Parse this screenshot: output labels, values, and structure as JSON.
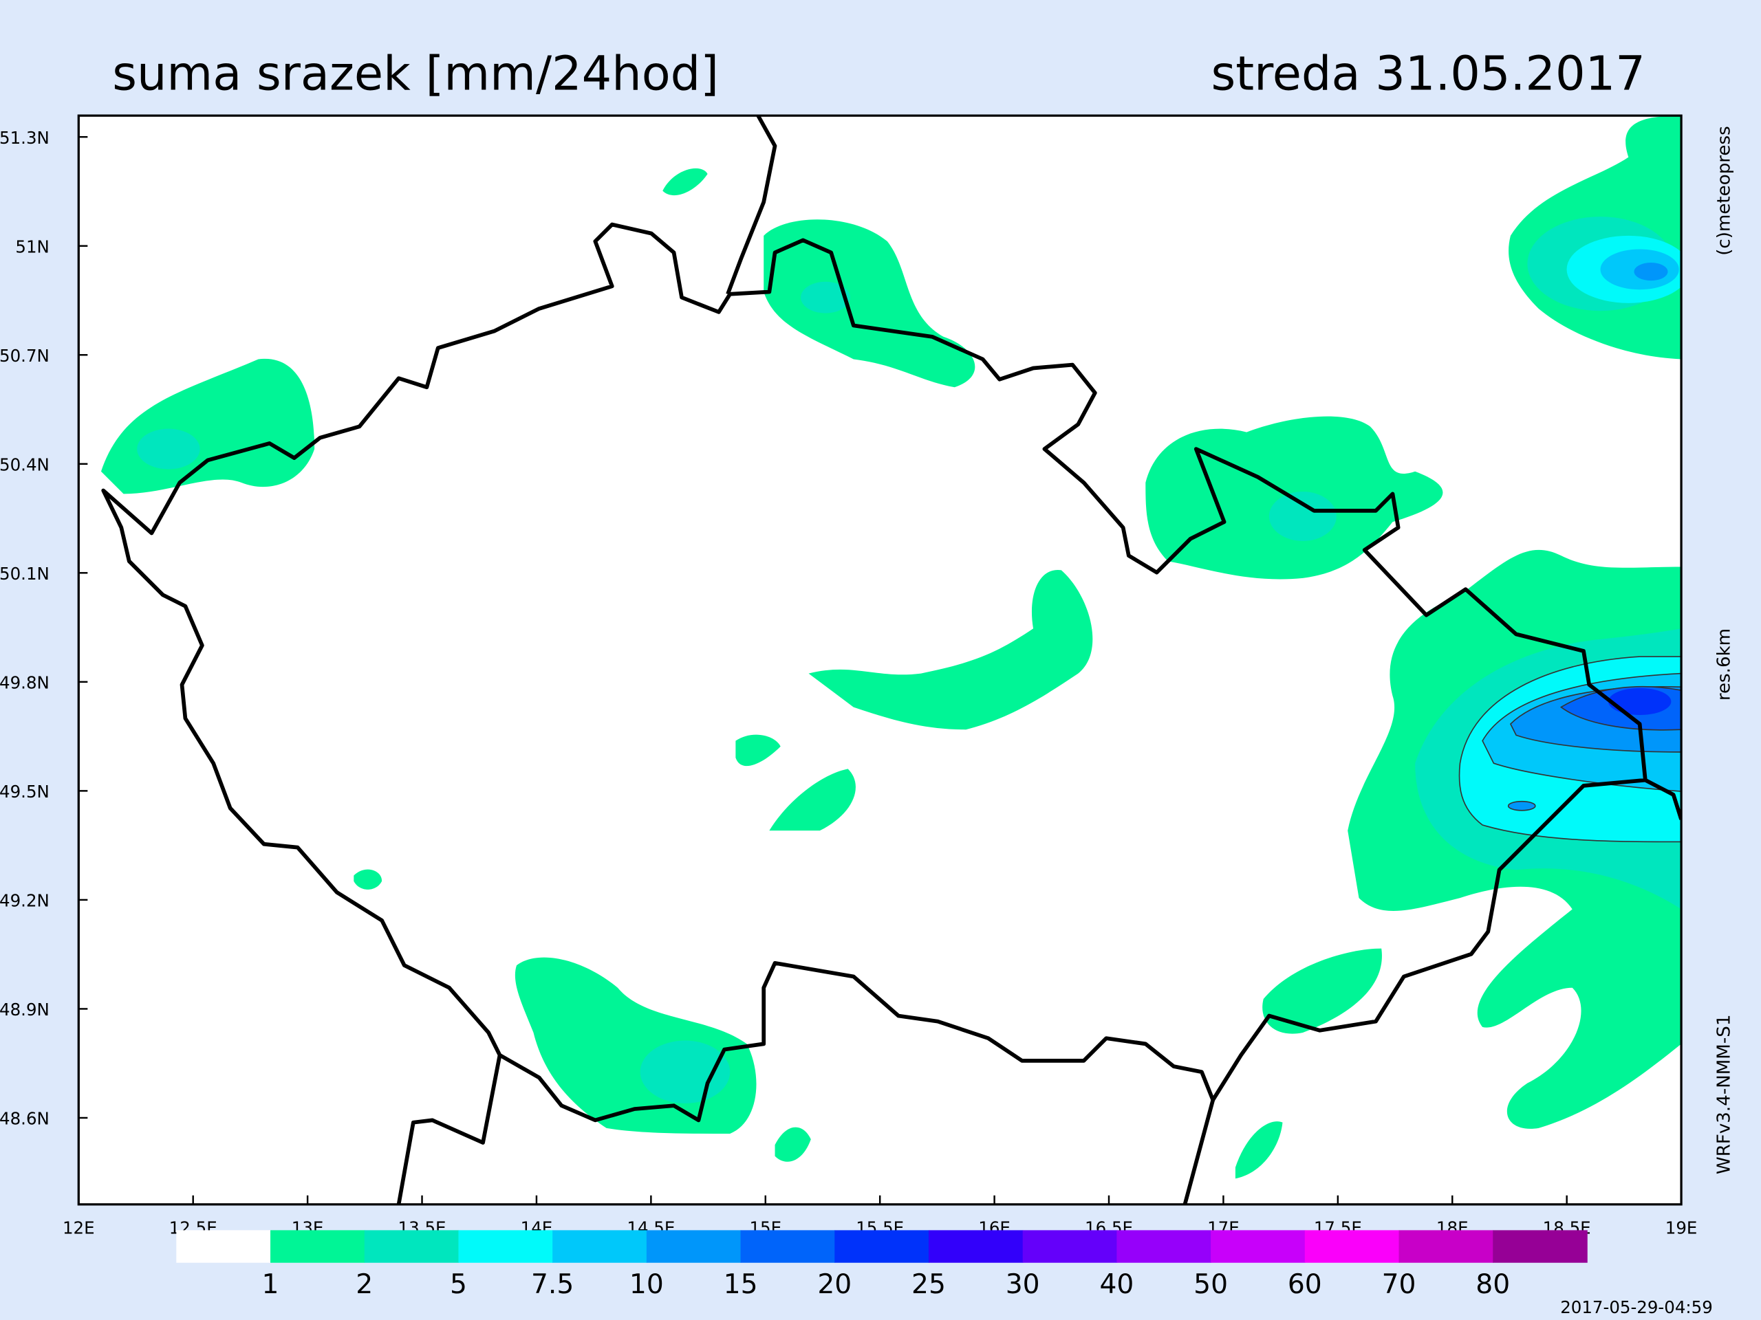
{
  "header": {
    "title": "suma srazek [mm/24hod]",
    "date": "streda 31.05.2017"
  },
  "map": {
    "lat_labels": [
      "51.3N",
      "51N",
      "50.7N",
      "50.4N",
      "50.1N",
      "49.8N",
      "49.5N",
      "49.2N",
      "48.9N",
      "48.6N"
    ],
    "lon_labels": [
      "12E",
      "12.5E",
      "13E",
      "13.5E",
      "14E",
      "14.5E",
      "15E",
      "15.5E",
      "16E",
      "16.5E",
      "17E",
      "17.5E",
      "18E",
      "18.5E",
      "19E"
    ]
  },
  "legend": {
    "labels": [
      "1",
      "2",
      "5",
      "7.5",
      "10",
      "15",
      "20",
      "25",
      "30",
      "40",
      "50",
      "60",
      "70",
      "80"
    ],
    "colors": [
      "#ffffff",
      "#00f596",
      "#00e6be",
      "#00fafa",
      "#00c8fa",
      "#0096fa",
      "#0064fa",
      "#0032fa",
      "#3200fa",
      "#6400fa",
      "#9600fa",
      "#c800fa",
      "#fa00fa",
      "#c800c8",
      "#960096"
    ]
  },
  "side_labels": {
    "credit": "(c)meteopress",
    "resolution": "res.6km",
    "model": "WRFv3.4-NMM-S1"
  },
  "timestamp": "2017-05-29-04:59"
}
